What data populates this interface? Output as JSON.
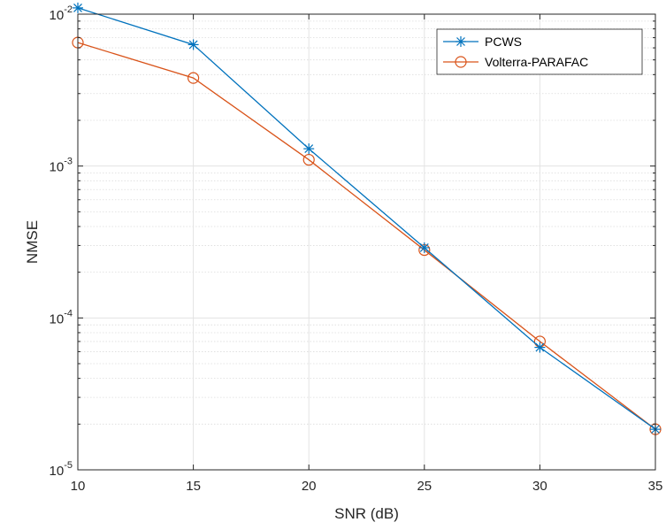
{
  "chart_data": {
    "type": "line",
    "title": "",
    "xlabel": "SNR (dB)",
    "ylabel": "NMSE",
    "yscale": "log",
    "xlim": [
      10,
      35
    ],
    "ylim": [
      1e-05,
      0.01
    ],
    "grid": true,
    "minor_grid": true,
    "legend_position": "top-right",
    "x": [
      10,
      15,
      20,
      25,
      30,
      35
    ],
    "x_ticks": [
      "10",
      "15",
      "20",
      "25",
      "30",
      "35"
    ],
    "y_ticks": [
      {
        "base": "10",
        "exp": "-5",
        "value": 1e-05
      },
      {
        "base": "10",
        "exp": "-4",
        "value": 0.0001
      },
      {
        "base": "10",
        "exp": "-3",
        "value": 0.001
      },
      {
        "base": "10",
        "exp": "-2",
        "value": 0.01
      }
    ],
    "series": [
      {
        "name": "PCWS",
        "color": "#0072BD",
        "marker": "asterisk",
        "values": [
          0.011,
          0.0063,
          0.0013,
          0.00029,
          6.4e-05,
          1.85e-05
        ]
      },
      {
        "name": "Volterra-PARAFAC",
        "color": "#D95319",
        "marker": "circle",
        "values": [
          0.0065,
          0.0038,
          0.0011,
          0.00028,
          7e-05,
          1.85e-05
        ]
      }
    ]
  }
}
